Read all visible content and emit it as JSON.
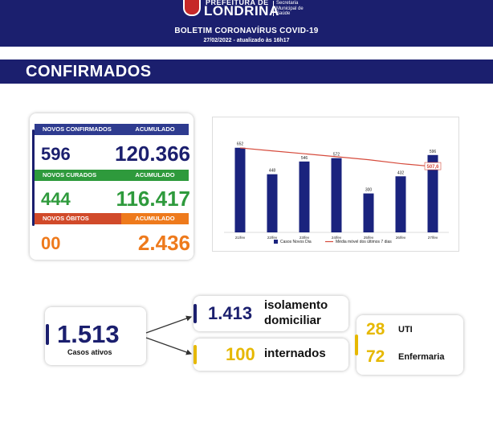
{
  "header": {
    "brand_top": "PREFEITURA DE",
    "brand": "LONDRINA",
    "brand_sub": "Secretaria Municipal de Saúde",
    "title": "BOLETIM CORONAVÍRUS COVID-19",
    "date": "27/02/2022 - atualizado às 16h17"
  },
  "section_title": "CONFIRMADOS",
  "stats": {
    "confirmed": {
      "label": "NOVOS CONFIRMADOS",
      "acc_label": "ACUMULADO",
      "value": "596",
      "accumulated": "120.366"
    },
    "recovered": {
      "label": "NOVOS CURADOS",
      "acc_label": "ACUMULADO",
      "value": "444",
      "accumulated": "116.417"
    },
    "deaths": {
      "label": "NOVOS ÓBITOS",
      "acc_label": "ACUMULADO",
      "value": "00",
      "accumulated": "2.436"
    }
  },
  "colors": {
    "navy": "#1b1f6e",
    "navy_label": "#2e3b8f",
    "green_label": "#2e9a3c",
    "green_value": "#2e9a3c",
    "red_label": "#d14a2a",
    "orange_value": "#ee7a1c",
    "yellow": "#e6b800",
    "bar": "#1a237e",
    "line": "#d64b3c"
  },
  "chart_data": {
    "type": "bar",
    "categories": [
      "21/fev",
      "22/fev",
      "23/fev",
      "24/fev",
      "25/fev",
      "26/fev",
      "27/fev"
    ],
    "series": [
      {
        "name": "Casos Novos Dia",
        "type": "bar",
        "values": [
          652,
          448,
          546,
          572,
          300,
          432,
          596
        ]
      },
      {
        "name": "Média móvel dos últimos 7 dias",
        "type": "line",
        "values": [
          651,
          628,
          606,
          583,
          560,
          530,
          507.6
        ]
      }
    ],
    "highlight_label": "507,6",
    "ylim": [
      0,
      700
    ],
    "legend": "bottom",
    "grid": false
  },
  "active": {
    "value": "1.513",
    "label": "Casos ativos",
    "home_isolation": {
      "value": "1.413",
      "label": "isolamento domiciliar"
    },
    "hospitalized": {
      "value": "100",
      "label": "internados"
    },
    "icu": {
      "value": "28",
      "label": "UTI"
    },
    "ward": {
      "value": "72",
      "label": "Enfermaria"
    }
  }
}
